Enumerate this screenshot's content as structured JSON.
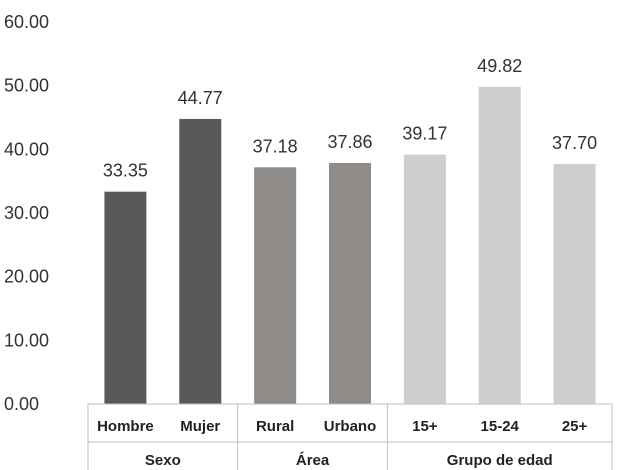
{
  "chart_data": {
    "type": "bar",
    "categories": [
      "Hombre",
      "Mujer",
      "Rural",
      "Urbano",
      "15+",
      "15-24",
      "25+"
    ],
    "values": [
      33.35,
      44.77,
      37.18,
      37.86,
      39.17,
      49.82,
      37.7
    ],
    "value_labels": [
      "33.35",
      "44.77",
      "37.18",
      "37.86",
      "39.17",
      "49.82",
      "37.70"
    ],
    "groups": [
      {
        "label": "Sexo",
        "categories": [
          "Hombre",
          "Mujer"
        ],
        "color": "#595959"
      },
      {
        "label": "Área",
        "categories": [
          "Rural",
          "Urbano"
        ],
        "color": "#8f8b89"
      },
      {
        "label": "Grupo de edad",
        "categories": [
          "15+",
          "15-24",
          "25+"
        ],
        "color": "#d0cecd"
      }
    ],
    "ylim": [
      0,
      60
    ],
    "yticks": [
      "0.00",
      "10.00",
      "20.00",
      "30.00",
      "40.00",
      "50.00",
      "60.00"
    ],
    "title": "",
    "xlabel": "",
    "ylabel": "",
    "grid": false,
    "legend": "none"
  }
}
